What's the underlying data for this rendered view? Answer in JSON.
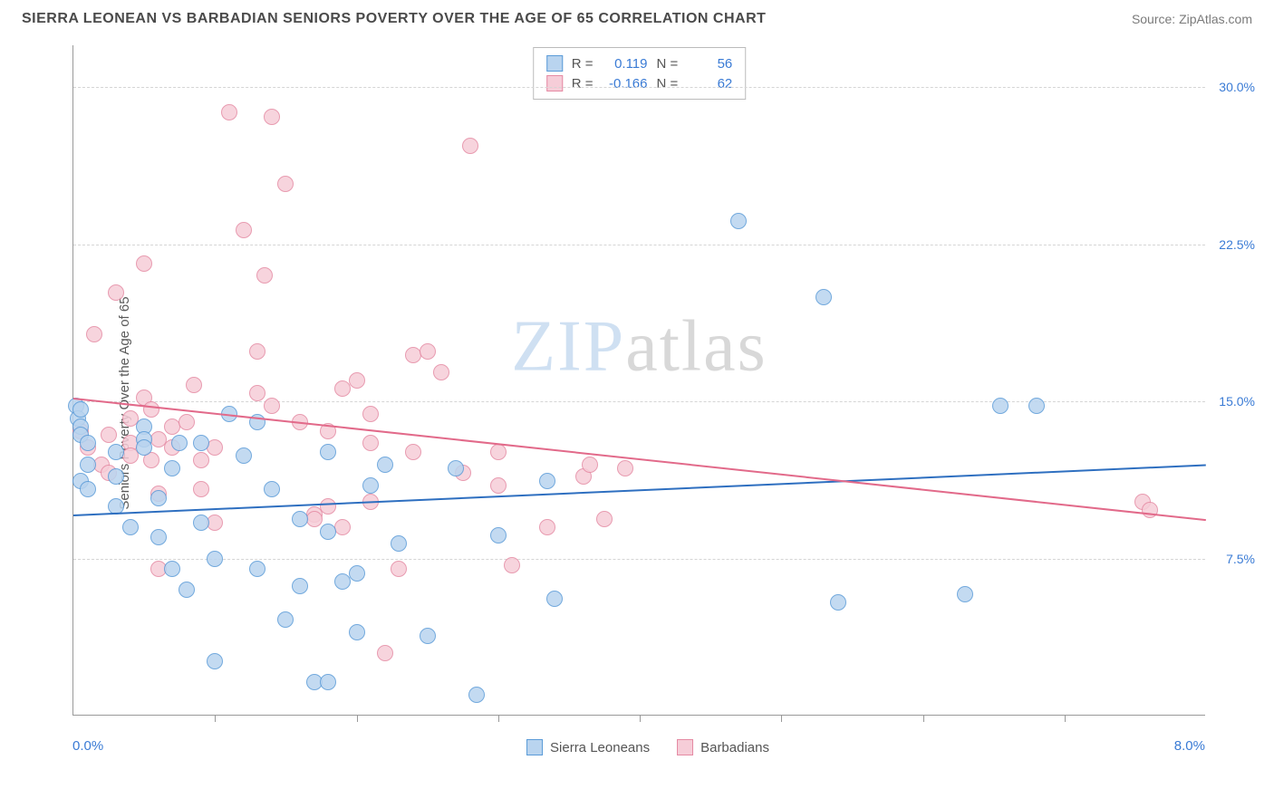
{
  "header": {
    "title": "SIERRA LEONEAN VS BARBADIAN SENIORS POVERTY OVER THE AGE OF 65 CORRELATION CHART",
    "source_label": "Source:",
    "source_name": "ZipAtlas.com"
  },
  "y_axis": {
    "label": "Seniors Poverty Over the Age of 65"
  },
  "x_axis": {
    "min_label": "0.0%",
    "max_label": "8.0%"
  },
  "watermark": {
    "zip": "ZIP",
    "atlas": "atlas"
  },
  "chart": {
    "type": "scatter",
    "x_domain": [
      0,
      8
    ],
    "y_domain": [
      0,
      32
    ],
    "y_ticks": [
      7.5,
      15.0,
      22.5,
      30.0
    ],
    "y_tick_labels": [
      "7.5%",
      "15.0%",
      "22.5%",
      "30.0%"
    ],
    "x_tick_positions": [
      1,
      2,
      3,
      4,
      5,
      6,
      7
    ],
    "grid_color": "#d5d5d5",
    "background_color": "#ffffff",
    "axis_color": "#999999",
    "marker_radius": 9,
    "marker_stroke_width": 1.5,
    "series": [
      {
        "name": "Sierra Leoneans",
        "fill": "#b9d4ef",
        "stroke": "#5a9bd8",
        "line_color": "#2e6fc0",
        "R": "0.119",
        "N": "56",
        "trend": {
          "x1": 0,
          "y1": 9.6,
          "x2": 8,
          "y2": 12.0
        },
        "points": [
          [
            0.02,
            14.8
          ],
          [
            0.03,
            14.2
          ],
          [
            0.05,
            14.6
          ],
          [
            0.05,
            11.2
          ],
          [
            0.05,
            13.8
          ],
          [
            0.05,
            13.4
          ],
          [
            0.1,
            13.0
          ],
          [
            0.1,
            12.0
          ],
          [
            0.1,
            10.8
          ],
          [
            0.3,
            12.6
          ],
          [
            0.3,
            11.4
          ],
          [
            0.3,
            10.0
          ],
          [
            0.4,
            9.0
          ],
          [
            0.5,
            13.8
          ],
          [
            0.5,
            13.2
          ],
          [
            0.5,
            12.8
          ],
          [
            0.6,
            10.4
          ],
          [
            0.6,
            8.5
          ],
          [
            0.7,
            11.8
          ],
          [
            0.7,
            7.0
          ],
          [
            0.75,
            13.0
          ],
          [
            0.8,
            6.0
          ],
          [
            0.9,
            13.0
          ],
          [
            0.9,
            9.2
          ],
          [
            1.0,
            2.6
          ],
          [
            1.0,
            7.5
          ],
          [
            1.1,
            14.4
          ],
          [
            1.2,
            12.4
          ],
          [
            1.3,
            14.0
          ],
          [
            1.3,
            7.0
          ],
          [
            1.4,
            10.8
          ],
          [
            1.5,
            4.6
          ],
          [
            1.6,
            9.4
          ],
          [
            1.6,
            6.2
          ],
          [
            1.7,
            1.6
          ],
          [
            1.8,
            1.6
          ],
          [
            1.8,
            12.6
          ],
          [
            1.8,
            8.8
          ],
          [
            1.9,
            6.4
          ],
          [
            2.0,
            4.0
          ],
          [
            2.0,
            6.8
          ],
          [
            2.1,
            11.0
          ],
          [
            2.2,
            12.0
          ],
          [
            2.3,
            8.2
          ],
          [
            2.5,
            3.8
          ],
          [
            2.7,
            11.8
          ],
          [
            2.85,
            1.0
          ],
          [
            3.0,
            8.6
          ],
          [
            3.35,
            11.2
          ],
          [
            3.4,
            5.6
          ],
          [
            4.7,
            23.6
          ],
          [
            5.3,
            20.0
          ],
          [
            5.4,
            5.4
          ],
          [
            6.3,
            5.8
          ],
          [
            6.55,
            14.8
          ],
          [
            6.8,
            14.8
          ]
        ]
      },
      {
        "name": "Barbadians",
        "fill": "#f6cdd8",
        "stroke": "#e58aa3",
        "line_color": "#e26a8a",
        "R": "-0.166",
        "N": "62",
        "trend": {
          "x1": 0,
          "y1": 15.2,
          "x2": 8,
          "y2": 9.4
        },
        "points": [
          [
            0.05,
            13.6
          ],
          [
            0.1,
            12.8
          ],
          [
            0.15,
            18.2
          ],
          [
            0.2,
            12.0
          ],
          [
            0.25,
            13.4
          ],
          [
            0.25,
            11.6
          ],
          [
            0.3,
            20.2
          ],
          [
            0.4,
            14.2
          ],
          [
            0.4,
            13.0
          ],
          [
            0.4,
            12.4
          ],
          [
            0.5,
            21.6
          ],
          [
            0.5,
            15.2
          ],
          [
            0.55,
            14.6
          ],
          [
            0.55,
            12.2
          ],
          [
            0.6,
            13.2
          ],
          [
            0.6,
            10.6
          ],
          [
            0.6,
            7.0
          ],
          [
            0.7,
            13.8
          ],
          [
            0.7,
            12.8
          ],
          [
            0.8,
            14.0
          ],
          [
            0.85,
            15.8
          ],
          [
            0.9,
            12.2
          ],
          [
            0.9,
            10.8
          ],
          [
            1.0,
            12.8
          ],
          [
            1.0,
            9.2
          ],
          [
            1.1,
            28.8
          ],
          [
            1.2,
            23.2
          ],
          [
            1.3,
            17.4
          ],
          [
            1.3,
            15.4
          ],
          [
            1.35,
            21.0
          ],
          [
            1.4,
            28.6
          ],
          [
            1.4,
            14.8
          ],
          [
            1.5,
            25.4
          ],
          [
            1.6,
            14.0
          ],
          [
            1.7,
            9.6
          ],
          [
            1.7,
            9.4
          ],
          [
            1.8,
            13.6
          ],
          [
            1.8,
            10.0
          ],
          [
            1.9,
            15.6
          ],
          [
            1.9,
            9.0
          ],
          [
            2.0,
            16.0
          ],
          [
            2.1,
            13.0
          ],
          [
            2.1,
            10.2
          ],
          [
            2.1,
            14.4
          ],
          [
            2.2,
            3.0
          ],
          [
            2.3,
            7.0
          ],
          [
            2.4,
            17.2
          ],
          [
            2.4,
            12.6
          ],
          [
            2.5,
            17.4
          ],
          [
            2.6,
            16.4
          ],
          [
            2.75,
            11.6
          ],
          [
            2.8,
            27.2
          ],
          [
            3.0,
            11.0
          ],
          [
            3.0,
            12.6
          ],
          [
            3.1,
            7.2
          ],
          [
            3.35,
            9.0
          ],
          [
            3.6,
            11.4
          ],
          [
            3.65,
            12.0
          ],
          [
            3.75,
            9.4
          ],
          [
            3.9,
            11.8
          ],
          [
            7.55,
            10.2
          ],
          [
            7.6,
            9.8
          ]
        ]
      }
    ]
  },
  "stats_box": {
    "r_label": "R =",
    "n_label": "N ="
  },
  "legend": {
    "items": [
      "Sierra Leoneans",
      "Barbadians"
    ]
  },
  "colors": {
    "tick_label": "#3a7bd5"
  }
}
